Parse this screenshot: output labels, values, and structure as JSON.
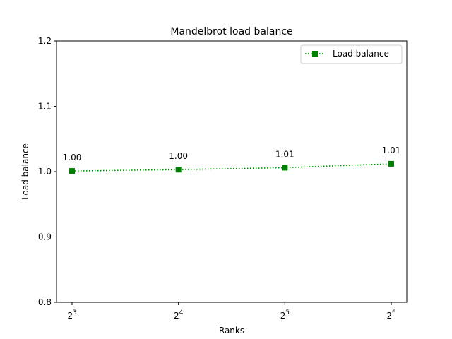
{
  "chart_data": {
    "type": "line",
    "title": "Mandelbrot load balance",
    "xlabel": "Ranks",
    "ylabel": "Load balance",
    "x_scale": "log2",
    "x": [
      8,
      16,
      32,
      64
    ],
    "xtick_labels": [
      {
        "base": "2",
        "exp": "3"
      },
      {
        "base": "2",
        "exp": "4"
      },
      {
        "base": "2",
        "exp": "5"
      },
      {
        "base": "2",
        "exp": "6"
      }
    ],
    "ylim": [
      0.8,
      1.2
    ],
    "yticks": [
      "0.8",
      "0.9",
      "1.0",
      "1.1",
      "1.2"
    ],
    "grid": false,
    "legend_position": "top-right",
    "series": [
      {
        "name": "Load balance",
        "color": "#008000",
        "line_style": "dotted",
        "marker": "square",
        "values": [
          1.001,
          1.003,
          1.006,
          1.012
        ],
        "data_labels": [
          "1.00",
          "1.00",
          "1.01",
          "1.01"
        ]
      }
    ]
  }
}
